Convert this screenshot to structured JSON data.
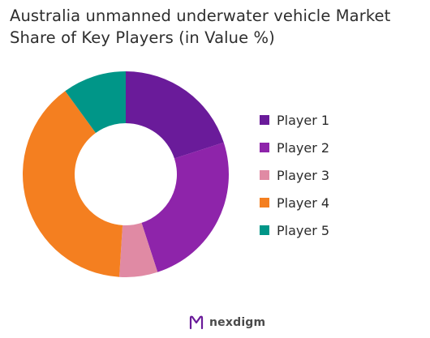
{
  "chart_data": {
    "type": "pie",
    "variant": "donut",
    "title_lines": [
      "Australia unmanned underwater vehicle Market",
      "Share of Key Players (in Value %)"
    ],
    "series": [
      {
        "name": "Player 1",
        "value": 20,
        "color": "#6a1b9a"
      },
      {
        "name": "Player 2",
        "value": 25,
        "color": "#8e24aa"
      },
      {
        "name": "Player 3",
        "value": 6,
        "color": "#e08aa4"
      },
      {
        "name": "Player 4",
        "value": 39,
        "color": "#f47f20"
      },
      {
        "name": "Player 5",
        "value": 10,
        "color": "#009688"
      }
    ],
    "legend_position": "right"
  },
  "brand": {
    "name": "nexdigm",
    "color": "#6a1b9a"
  }
}
